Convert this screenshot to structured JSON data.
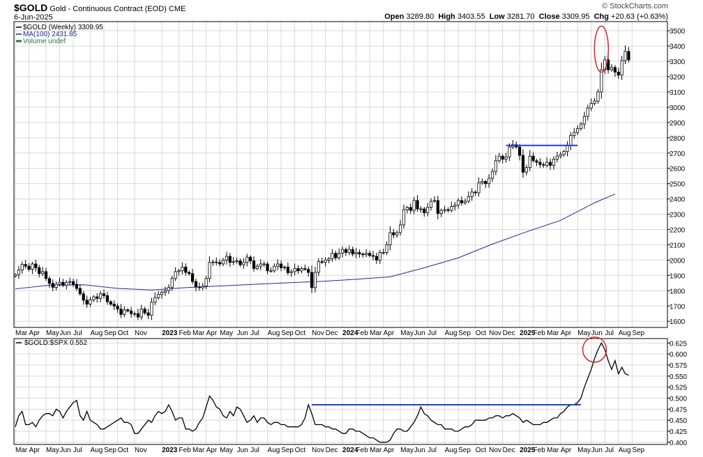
{
  "header": {
    "symbol": "$GOLD",
    "name": "Gold - Continuous Contract (EOD)",
    "exchange": "CME",
    "date": "6-Jun-2025",
    "brand": "© StockCharts.com",
    "open_label": "Open",
    "open": "3289.80",
    "high_label": "High",
    "high": "3403.55",
    "low_label": "Low",
    "low": "3281.70",
    "close_label": "Close",
    "close": "3309.95",
    "chg_label": "Chg",
    "chg": "+20.63 (+0.63%)"
  },
  "colors": {
    "price": "#000000",
    "ma": "#1a2a9c",
    "volume": "#2a7a3a",
    "resistance": "#1f3fd6",
    "annotation_circle": "#e02020",
    "grid": "#d8d8d8",
    "border": "#000000"
  },
  "chart_data": [
    {
      "type": "candlestick",
      "legend": [
        {
          "label": "$GOLD (Weekly) 3309.95",
          "color": "#000000"
        },
        {
          "label": "MA(100) 2431.85",
          "color": "#1a2a9c"
        },
        {
          "label": "Volume undef",
          "color": "#2a7a3a"
        }
      ],
      "yticks": [
        1600,
        1700,
        1800,
        1900,
        2000,
        2100,
        2200,
        2300,
        2400,
        2500,
        2600,
        2700,
        2800,
        2900,
        3000,
        3100,
        3200,
        3300,
        3400,
        3500
      ],
      "ylim": [
        1560,
        3560
      ],
      "xlim": [
        0,
        176
      ],
      "close": [
        1905,
        1935,
        1972,
        1960,
        1940,
        1975,
        1950,
        1912,
        1925,
        1880,
        1848,
        1822,
        1842,
        1855,
        1835,
        1855,
        1860,
        1842,
        1815,
        1780,
        1738,
        1712,
        1740,
        1760,
        1750,
        1780,
        1768,
        1728,
        1712,
        1700,
        1680,
        1645,
        1675,
        1668,
        1650,
        1650,
        1628,
        1680,
        1655,
        1640,
        1725,
        1755,
        1775,
        1790,
        1800,
        1822,
        1880,
        1925,
        1930,
        1955,
        1920,
        1912,
        1860,
        1825,
        1820,
        1830,
        1880,
        1985,
        1988,
        1985,
        1975,
        2000,
        2025,
        1985,
        1990,
        1995,
        1970,
        1985,
        2020,
        1995,
        1945,
        1960,
        1975,
        1975,
        1930,
        1930,
        1960,
        1975,
        1950,
        1955,
        1918,
        1925,
        1945,
        1930,
        1945,
        1940,
        1920,
        1820,
        1920,
        1990,
        1985,
        2000,
        2010,
        2045,
        2015,
        2045,
        2070,
        2050,
        2070,
        2040,
        2050,
        2040,
        2035,
        2045,
        2030,
        2025,
        2000,
        2050,
        2050,
        2100,
        2180,
        2165,
        2180,
        2230,
        2330,
        2345,
        2325,
        2390,
        2335,
        2335,
        2310,
        2345,
        2385,
        2390,
        2305,
        2325,
        2330,
        2325,
        2350,
        2360,
        2390,
        2375,
        2385,
        2415,
        2445,
        2440,
        2505,
        2515,
        2500,
        2535,
        2580,
        2650,
        2680,
        2660,
        2675,
        2740,
        2755,
        2740,
        2685,
        2575,
        2605,
        2680,
        2650,
        2640,
        2625,
        2620,
        2640,
        2620,
        2660,
        2680,
        2690,
        2710,
        2750,
        2815,
        2835,
        2860,
        2890,
        2940,
        2995,
        3025,
        3040,
        3100,
        3245,
        3310,
        3245,
        3260,
        3230,
        3210,
        3305,
        3365,
        3310
      ],
      "moving_average_100": [
        {
          "x": 0,
          "y": 1812
        },
        {
          "x": 10,
          "y": 1836
        },
        {
          "x": 20,
          "y": 1839
        },
        {
          "x": 30,
          "y": 1815
        },
        {
          "x": 40,
          "y": 1805
        },
        {
          "x": 50,
          "y": 1820
        },
        {
          "x": 60,
          "y": 1831
        },
        {
          "x": 70,
          "y": 1842
        },
        {
          "x": 80,
          "y": 1852
        },
        {
          "x": 90,
          "y": 1861
        },
        {
          "x": 100,
          "y": 1875
        },
        {
          "x": 110,
          "y": 1891
        },
        {
          "x": 120,
          "y": 1950
        },
        {
          "x": 130,
          "y": 2015
        },
        {
          "x": 140,
          "y": 2105
        },
        {
          "x": 150,
          "y": 2185
        },
        {
          "x": 160,
          "y": 2260
        },
        {
          "x": 170,
          "y": 2375
        },
        {
          "x": 176,
          "y": 2432
        }
      ],
      "resistance_line": {
        "x0": 144,
        "x1": 165,
        "y": 2750
      },
      "annotation_circle": {
        "x": 172,
        "y": 3380
      }
    },
    {
      "type": "line",
      "legend": [
        {
          "label": "$GOLD:$SPX 0.552",
          "color": "#000000"
        }
      ],
      "yticks": [
        0.4,
        0.425,
        0.45,
        0.475,
        0.5,
        0.525,
        0.55,
        0.575,
        0.6,
        0.625
      ],
      "ylim": [
        0.395,
        0.635
      ],
      "xlim": [
        0,
        176
      ],
      "values": [
        0.435,
        0.46,
        0.47,
        0.44,
        0.44,
        0.445,
        0.435,
        0.45,
        0.46,
        0.465,
        0.465,
        0.46,
        0.475,
        0.47,
        0.455,
        0.47,
        0.48,
        0.49,
        0.495,
        0.46,
        0.45,
        0.47,
        0.45,
        0.445,
        0.44,
        0.43,
        0.43,
        0.435,
        0.44,
        0.445,
        0.45,
        0.455,
        0.445,
        0.445,
        0.44,
        0.42,
        0.42,
        0.43,
        0.44,
        0.45,
        0.445,
        0.46,
        0.47,
        0.465,
        0.47,
        0.485,
        0.47,
        0.45,
        0.455,
        0.455,
        0.43,
        0.43,
        0.425,
        0.43,
        0.445,
        0.455,
        0.48,
        0.505,
        0.495,
        0.48,
        0.475,
        0.46,
        0.455,
        0.47,
        0.46,
        0.48,
        0.475,
        0.46,
        0.445,
        0.45,
        0.46,
        0.445,
        0.455,
        0.455,
        0.445,
        0.44,
        0.445,
        0.445,
        0.44,
        0.44,
        0.435,
        0.435,
        0.435,
        0.435,
        0.44,
        0.455,
        0.485,
        0.465,
        0.44,
        0.44,
        0.44,
        0.435,
        0.435,
        0.43,
        0.43,
        0.425,
        0.42,
        0.42,
        0.43,
        0.43,
        0.425,
        0.425,
        0.42,
        0.415,
        0.41,
        0.41,
        0.405,
        0.4,
        0.4,
        0.4,
        0.405,
        0.42,
        0.43,
        0.43,
        0.425,
        0.425,
        0.435,
        0.445,
        0.46,
        0.48,
        0.465,
        0.46,
        0.45,
        0.445,
        0.44,
        0.44,
        0.43,
        0.43,
        0.43,
        0.425,
        0.425,
        0.43,
        0.435,
        0.435,
        0.44,
        0.45,
        0.45,
        0.45,
        0.45,
        0.455,
        0.455,
        0.46,
        0.46,
        0.455,
        0.46,
        0.46,
        0.465,
        0.46,
        0.455,
        0.445,
        0.45,
        0.445,
        0.44,
        0.44,
        0.44,
        0.445,
        0.445,
        0.45,
        0.455,
        0.455,
        0.465,
        0.47,
        0.48,
        0.485,
        0.485,
        0.49,
        0.5,
        0.525,
        0.545,
        0.565,
        0.59,
        0.61,
        0.625,
        0.61,
        0.585,
        0.565,
        0.585,
        0.555,
        0.57,
        0.555,
        0.552
      ],
      "resistance_line": {
        "x0": 87,
        "x1": 166,
        "y": 0.485
      },
      "annotation_circle": {
        "x": 170,
        "y": 0.61
      }
    }
  ],
  "x_axis": {
    "labels": [
      {
        "i": 0,
        "text": "Mar",
        "bold": false
      },
      {
        "i": 4,
        "text": "Apr",
        "bold": false
      },
      {
        "i": 9,
        "text": "May",
        "bold": false
      },
      {
        "i": 13,
        "text": "Jun",
        "bold": false
      },
      {
        "i": 17,
        "text": "Jul",
        "bold": false
      },
      {
        "i": 22,
        "text": "Aug",
        "bold": false
      },
      {
        "i": 26,
        "text": "Sep",
        "bold": false
      },
      {
        "i": 30,
        "text": "Oct",
        "bold": false
      },
      {
        "i": 35,
        "text": "Nov",
        "bold": false
      },
      {
        "i": 43,
        "text": "2023",
        "bold": true
      },
      {
        "i": 48,
        "text": "Feb",
        "bold": false
      },
      {
        "i": 52,
        "text": "Mar",
        "bold": false
      },
      {
        "i": 56,
        "text": "Apr",
        "bold": false
      },
      {
        "i": 60,
        "text": "May",
        "bold": false
      },
      {
        "i": 65,
        "text": "Jun",
        "bold": false
      },
      {
        "i": 69,
        "text": "Jul",
        "bold": false
      },
      {
        "i": 74,
        "text": "Aug",
        "bold": false
      },
      {
        "i": 78,
        "text": "Sep",
        "bold": false
      },
      {
        "i": 82,
        "text": "Oct",
        "bold": false
      },
      {
        "i": 87,
        "text": "Nov",
        "bold": false
      },
      {
        "i": 91,
        "text": "Dec",
        "bold": false
      },
      {
        "i": 96,
        "text": "2024",
        "bold": true
      },
      {
        "i": 100,
        "text": "Feb",
        "bold": false
      },
      {
        "i": 104,
        "text": "Mar",
        "bold": false
      },
      {
        "i": 108,
        "text": "Apr",
        "bold": false
      },
      {
        "i": 113,
        "text": "May",
        "bold": false
      },
      {
        "i": 117,
        "text": "Jun",
        "bold": false
      },
      {
        "i": 121,
        "text": "Jul",
        "bold": false
      },
      {
        "i": 126,
        "text": "Aug",
        "bold": false
      },
      {
        "i": 130,
        "text": "Sep",
        "bold": false
      },
      {
        "i": 135,
        "text": "Oct",
        "bold": false
      },
      {
        "i": 139,
        "text": "Nov",
        "bold": false
      },
      {
        "i": 143,
        "text": "Dec",
        "bold": false
      },
      {
        "i": 148,
        "text": "2025",
        "bold": true
      },
      {
        "i": 152,
        "text": "Feb",
        "bold": false
      },
      {
        "i": 156,
        "text": "Mar",
        "bold": false
      },
      {
        "i": 160,
        "text": "Apr",
        "bold": false
      },
      {
        "i": 165,
        "text": "May",
        "bold": false
      },
      {
        "i": 169,
        "text": "Jun",
        "bold": false
      },
      {
        "i": 173,
        "text": "Jul",
        "bold": false
      },
      {
        "i": 177,
        "text": "Aug",
        "bold": false
      },
      {
        "i": 181,
        "text": "Sep",
        "bold": false
      }
    ]
  }
}
